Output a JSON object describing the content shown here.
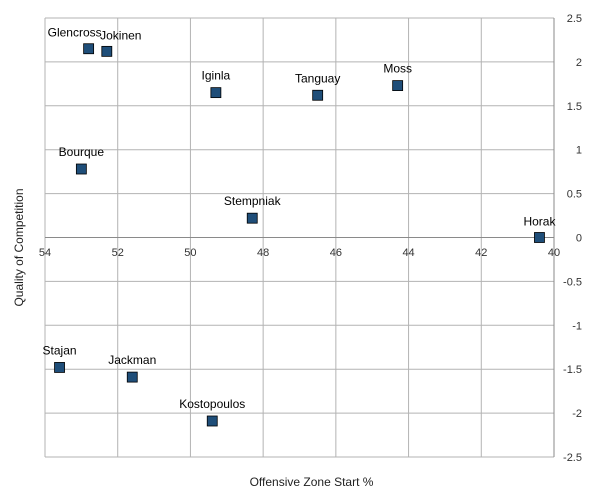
{
  "chart_data": {
    "type": "scatter",
    "xlabel": "Offensive Zone Start %",
    "ylabel": "Quality of Competition",
    "xlim": [
      54,
      40
    ],
    "ylim": [
      -2.5,
      2.5
    ],
    "x_reversed": true,
    "x_ticks": [
      54,
      52,
      50,
      48,
      46,
      44,
      42,
      40
    ],
    "y_ticks": [
      2.5,
      2,
      1.5,
      1,
      0.5,
      0,
      -0.5,
      -1,
      -1.5,
      -2,
      -2.5
    ],
    "grid": true,
    "marker_color": "#1f4e79",
    "points": [
      {
        "label": "Glencross",
        "x": 52.8,
        "y": 2.15
      },
      {
        "label": "Jokinen",
        "x": 52.3,
        "y": 2.12
      },
      {
        "label": "Iginla",
        "x": 49.3,
        "y": 1.65
      },
      {
        "label": "Tanguay",
        "x": 46.5,
        "y": 1.62
      },
      {
        "label": "Moss",
        "x": 44.3,
        "y": 1.73
      },
      {
        "label": "Bourque",
        "x": 53.0,
        "y": 0.78
      },
      {
        "label": "Stempniak",
        "x": 48.3,
        "y": 0.22
      },
      {
        "label": "Horak",
        "x": 40.4,
        "y": 0.0
      },
      {
        "label": "Stajan",
        "x": 53.6,
        "y": -1.48
      },
      {
        "label": "Jackman",
        "x": 51.6,
        "y": -1.59
      },
      {
        "label": "Kostopoulos",
        "x": 49.4,
        "y": -2.09
      }
    ]
  }
}
